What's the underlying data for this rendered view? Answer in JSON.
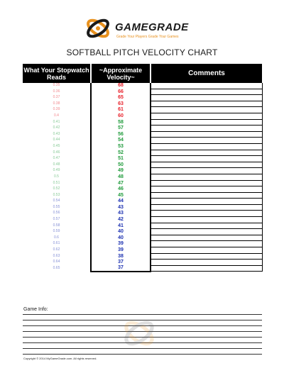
{
  "logo": {
    "brand": "GAMEGRADE",
    "tagline": "Grade Your Players Grade Your Games",
    "colors": {
      "orange": "#e8911e",
      "dark": "#1a1a1a"
    }
  },
  "title": "SOFTBALL PITCH VELOCITY CHART",
  "table": {
    "headers": {
      "stopwatch": "What Your Stopwatch Reads",
      "velocity": "~Approximate Velocity~",
      "comments": "Comments"
    },
    "colors": {
      "red": "#e8202a",
      "green": "#1e9a3a",
      "blue": "#1a2fb0"
    },
    "rows": [
      {
        "stopwatch": "0.35",
        "velocity": "68",
        "color": "red"
      },
      {
        "stopwatch": "0.36",
        "velocity": "66",
        "color": "red"
      },
      {
        "stopwatch": "0.37",
        "velocity": "65",
        "color": "red"
      },
      {
        "stopwatch": "0.38",
        "velocity": "63",
        "color": "red"
      },
      {
        "stopwatch": "0.39",
        "velocity": "61",
        "color": "red"
      },
      {
        "stopwatch": "0.4",
        "velocity": "60",
        "color": "red"
      },
      {
        "stopwatch": "0.41",
        "velocity": "58",
        "color": "green"
      },
      {
        "stopwatch": "0.42",
        "velocity": "57",
        "color": "green"
      },
      {
        "stopwatch": "0.43",
        "velocity": "56",
        "color": "green"
      },
      {
        "stopwatch": "0.44",
        "velocity": "54",
        "color": "green"
      },
      {
        "stopwatch": "0.45",
        "velocity": "53",
        "color": "green"
      },
      {
        "stopwatch": "0.46",
        "velocity": "52",
        "color": "green"
      },
      {
        "stopwatch": "0.47",
        "velocity": "51",
        "color": "green"
      },
      {
        "stopwatch": "0.48",
        "velocity": "50",
        "color": "green"
      },
      {
        "stopwatch": "0.49",
        "velocity": "49",
        "color": "green"
      },
      {
        "stopwatch": "0.5",
        "velocity": "48",
        "color": "green"
      },
      {
        "stopwatch": "0.51",
        "velocity": "47",
        "color": "green"
      },
      {
        "stopwatch": "0.52",
        "velocity": "46",
        "color": "green"
      },
      {
        "stopwatch": "0.53",
        "velocity": "45",
        "color": "green"
      },
      {
        "stopwatch": "0.54",
        "velocity": "44",
        "color": "blue"
      },
      {
        "stopwatch": "0.55",
        "velocity": "43",
        "color": "blue"
      },
      {
        "stopwatch": "0.56",
        "velocity": "43",
        "color": "blue"
      },
      {
        "stopwatch": "0.57",
        "velocity": "42",
        "color": "blue"
      },
      {
        "stopwatch": "0.58",
        "velocity": "41",
        "color": "blue"
      },
      {
        "stopwatch": "0.59",
        "velocity": "40",
        "color": "blue"
      },
      {
        "stopwatch": "0.6",
        "velocity": "40",
        "color": "blue"
      },
      {
        "stopwatch": "0.61",
        "velocity": "39",
        "color": "blue"
      },
      {
        "stopwatch": "0.62",
        "velocity": "39",
        "color": "blue"
      },
      {
        "stopwatch": "0.63",
        "velocity": "38",
        "color": "blue"
      },
      {
        "stopwatch": "0.64",
        "velocity": "37",
        "color": "blue"
      },
      {
        "stopwatch": "0.65",
        "velocity": "37",
        "color": "blue"
      }
    ]
  },
  "game_info": {
    "label": "Game Info:"
  },
  "copyright": "Copyright © 2014 MyGameGrade.com. All rights reserved."
}
